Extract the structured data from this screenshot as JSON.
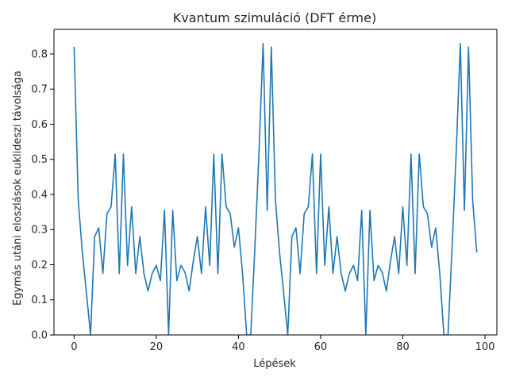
{
  "chart_data": {
    "type": "line",
    "title": "Kvantum szimuláció (DFT érme)",
    "xlabel": "Lépések",
    "ylabel": "Egymás utáni eloszlások euklideszi távolsága",
    "xlim": [
      -4.9,
      102.9
    ],
    "ylim": [
      0,
      0.87
    ],
    "xticks": [
      0,
      20,
      40,
      60,
      80,
      100
    ],
    "yticks": [
      0.0,
      0.1,
      0.2,
      0.3,
      0.4,
      0.5,
      0.6,
      0.7,
      0.8
    ],
    "grid": false,
    "series_color": "#1f77b4",
    "series": [
      {
        "x": [
          0,
          1,
          2,
          3,
          4,
          5,
          6,
          7,
          8,
          9,
          10,
          11,
          12,
          13,
          14,
          15,
          16,
          17,
          18,
          19,
          20,
          21,
          22,
          23,
          24,
          25,
          26,
          27,
          28,
          29,
          30,
          31,
          32,
          33,
          34,
          35,
          36,
          37,
          38,
          39,
          40,
          41,
          42,
          43,
          44,
          45,
          46,
          47,
          48,
          49,
          50,
          51,
          52,
          53,
          54,
          55,
          56,
          57,
          58,
          59,
          60,
          61,
          62,
          63,
          64,
          65,
          66,
          67,
          68,
          69,
          70,
          71,
          72,
          73,
          74,
          75,
          76,
          77,
          78,
          79,
          80,
          81,
          82,
          83,
          84,
          85,
          86,
          87,
          88,
          89,
          90,
          91,
          92,
          93,
          94,
          95,
          96,
          97,
          98
        ],
        "values": [
          0.82,
          0.385,
          0.235,
          0.12,
          0.0,
          0.28,
          0.305,
          0.175,
          0.345,
          0.365,
          0.515,
          0.175,
          0.515,
          0.198,
          0.365,
          0.175,
          0.28,
          0.175,
          0.125,
          0.175,
          0.198,
          0.155,
          0.355,
          0.0,
          0.355,
          0.155,
          0.198,
          0.178,
          0.125,
          0.21,
          0.28,
          0.175,
          0.365,
          0.198,
          0.515,
          0.175,
          0.515,
          0.365,
          0.345,
          0.25,
          0.305,
          0.175,
          0.0,
          0.0,
          0.25,
          0.52,
          0.83,
          0.355,
          0.82,
          0.385,
          0.235,
          0.12,
          0.0,
          0.28,
          0.305,
          0.175,
          0.345,
          0.365,
          0.515,
          0.175,
          0.515,
          0.198,
          0.365,
          0.175,
          0.28,
          0.175,
          0.125,
          0.175,
          0.198,
          0.155,
          0.355,
          0.0,
          0.355,
          0.155,
          0.198,
          0.178,
          0.125,
          0.21,
          0.28,
          0.175,
          0.365,
          0.198,
          0.515,
          0.175,
          0.515,
          0.365,
          0.345,
          0.25,
          0.305,
          0.175,
          0.0,
          0.0,
          0.25,
          0.52,
          0.83,
          0.355,
          0.82,
          0.385,
          0.235
        ]
      }
    ]
  }
}
